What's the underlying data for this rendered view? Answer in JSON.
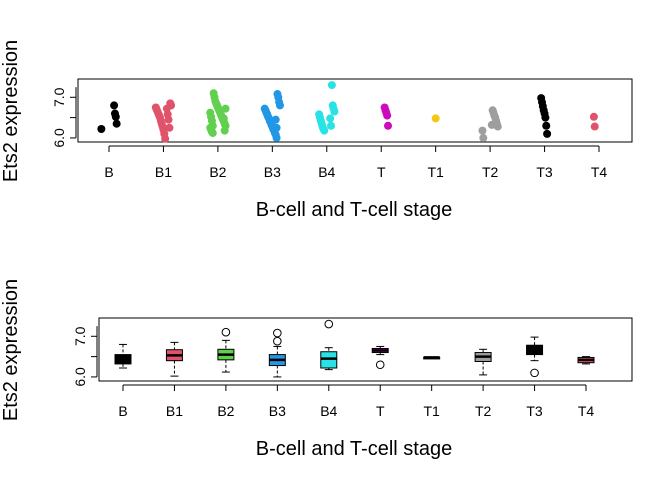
{
  "chart_data": [
    {
      "type": "scatter",
      "xlabel": "B-cell and T-cell stage",
      "ylabel": "Ets2 expression",
      "ylim": [
        5.9,
        7.45
      ],
      "yticks": [
        "6.0",
        "7.0"
      ],
      "categories": [
        "B",
        "B1",
        "B2",
        "B3",
        "B4",
        "T",
        "T1",
        "T2",
        "T3",
        "T4"
      ],
      "colors": [
        "#000000",
        "#DF536B",
        "#61D04F",
        "#2297E6",
        "#28E2E5",
        "#CD0BBC",
        "#F5C710",
        "#9E9E9E",
        "#000000",
        "#DF536B"
      ],
      "points": [
        [
          6.22,
          6.35,
          6.52,
          6.6,
          6.8
        ],
        [
          5.98,
          6.1,
          6.2,
          6.28,
          6.35,
          6.42,
          6.5,
          6.55,
          6.6,
          6.65,
          6.7,
          6.75,
          6.8,
          6.85,
          6.25,
          6.45,
          6.58,
          6.72
        ],
        [
          6.12,
          6.15,
          6.2,
          6.25,
          6.3,
          6.35,
          6.4,
          6.45,
          6.5,
          6.55,
          6.6,
          6.65,
          6.7,
          6.75,
          6.8,
          6.85,
          6.9,
          7.0,
          7.1,
          6.3,
          6.42,
          6.52,
          6.62,
          6.72,
          6.18,
          6.48
        ],
        [
          6.0,
          6.08,
          6.12,
          6.18,
          6.22,
          6.28,
          6.32,
          6.38,
          6.42,
          6.48,
          6.52,
          6.58,
          6.62,
          6.68,
          6.72,
          6.8,
          6.88,
          7.0,
          7.08,
          6.25,
          6.45
        ],
        [
          6.18,
          6.22,
          6.28,
          6.35,
          6.42,
          6.5,
          6.58,
          6.65,
          6.72,
          6.8,
          7.3,
          6.3,
          6.48
        ],
        [
          6.3,
          6.55,
          6.62,
          6.68,
          6.75
        ],
        [
          6.48
        ],
        [
          6.0,
          6.18,
          6.28,
          6.35,
          6.42,
          6.5,
          6.55,
          6.62,
          6.68,
          6.32
        ],
        [
          6.1,
          6.3,
          6.5,
          6.6,
          6.68,
          6.78,
          6.88,
          6.98
        ],
        [
          6.28,
          6.52
        ]
      ]
    },
    {
      "type": "box",
      "xlabel": "B-cell and T-cell stage",
      "ylabel": "Ets2 expression",
      "ylim": [
        5.9,
        7.45
      ],
      "yticks": [
        "6.0",
        "7.0"
      ],
      "categories": [
        "B",
        "B1",
        "B2",
        "B3",
        "B4",
        "T",
        "T1",
        "T2",
        "T3",
        "T4"
      ],
      "colors": [
        "#000000",
        "#DF536B",
        "#61D04F",
        "#2297E6",
        "#28E2E5",
        "#CD0BBC",
        "#F5C710",
        "#9E9E9E",
        "#000000",
        "#DF536B"
      ],
      "boxes": [
        {
          "lo": 6.22,
          "q1": 6.32,
          "med": 6.42,
          "q3": 6.55,
          "hi": 6.8,
          "out": []
        },
        {
          "lo": 6.02,
          "q1": 6.4,
          "med": 6.53,
          "q3": 6.67,
          "hi": 6.85,
          "out": []
        },
        {
          "lo": 6.12,
          "q1": 6.42,
          "med": 6.55,
          "q3": 6.68,
          "hi": 6.9,
          "out": [
            7.1
          ]
        },
        {
          "lo": 6.0,
          "q1": 6.28,
          "med": 6.42,
          "q3": 6.55,
          "hi": 6.75,
          "out": [
            6.88,
            7.08
          ]
        },
        {
          "lo": 6.18,
          "q1": 6.22,
          "med": 6.45,
          "q3": 6.62,
          "hi": 6.72,
          "out": [
            7.3
          ]
        },
        {
          "lo": 6.55,
          "q1": 6.6,
          "med": 6.65,
          "q3": 6.7,
          "hi": 6.75,
          "out": [
            6.3
          ]
        },
        {
          "lo": 6.48,
          "q1": 6.48,
          "med": 6.48,
          "q3": 6.48,
          "hi": 6.48,
          "out": []
        },
        {
          "lo": 6.05,
          "q1": 6.38,
          "med": 6.5,
          "q3": 6.6,
          "hi": 6.68,
          "out": []
        },
        {
          "lo": 6.4,
          "q1": 6.55,
          "med": 6.68,
          "q3": 6.78,
          "hi": 6.98,
          "out": [
            6.1
          ]
        },
        {
          "lo": 6.32,
          "q1": 6.35,
          "med": 6.42,
          "q3": 6.48,
          "hi": 6.5,
          "out": []
        }
      ]
    }
  ]
}
